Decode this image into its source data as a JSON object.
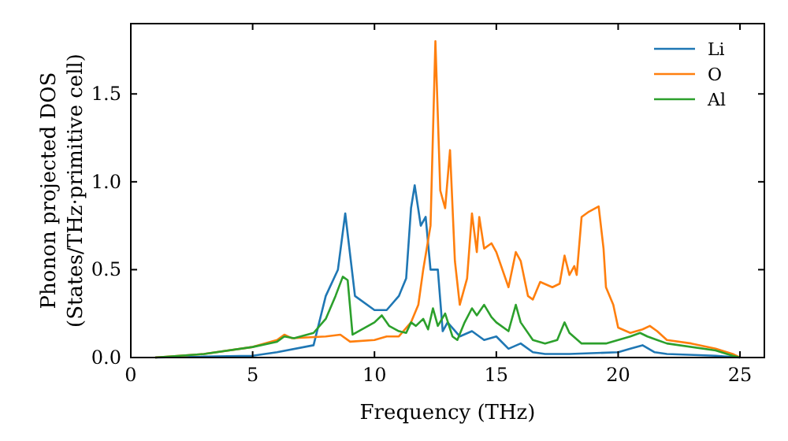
{
  "chart_data": {
    "type": "line",
    "xlabel": "Frequency (THz)",
    "ylabel": "Phonon projected DOS\n(States/THz·primitive cell)",
    "xlim": [
      0,
      26
    ],
    "ylim": [
      0,
      1.9
    ],
    "xticks": [
      0,
      5,
      10,
      15,
      20,
      25
    ],
    "yticks": [
      {
        "value": 0,
        "label": "0.0"
      },
      {
        "value": 0.5,
        "label": "0.5"
      },
      {
        "value": 1,
        "label": "1.0"
      },
      {
        "value": 1.5,
        "label": "1.5"
      }
    ],
    "legend": "top right",
    "grid": false,
    "marker": "none",
    "line_style": "solid",
    "series": [
      {
        "name": "Li",
        "color": "#1f77b4",
        "x": [
          1,
          3,
          5,
          6,
          7.5,
          8,
          8.5,
          8.8,
          9.2,
          10,
          10.5,
          11,
          11.3,
          11.5,
          11.65,
          11.9,
          12.1,
          12.3,
          12.6,
          12.8,
          13,
          13.5,
          14,
          14.5,
          15,
          15.5,
          16,
          16.5,
          17,
          18,
          20,
          20.5,
          21,
          21.5,
          22,
          24,
          25
        ],
        "values": [
          0,
          0.005,
          0.01,
          0.03,
          0.07,
          0.35,
          0.5,
          0.82,
          0.35,
          0.27,
          0.27,
          0.35,
          0.45,
          0.85,
          0.98,
          0.75,
          0.8,
          0.5,
          0.5,
          0.15,
          0.2,
          0.12,
          0.15,
          0.1,
          0.12,
          0.05,
          0.08,
          0.03,
          0.02,
          0.02,
          0.03,
          0.05,
          0.07,
          0.03,
          0.02,
          0.01,
          0
        ]
      },
      {
        "name": "O",
        "color": "#ff7f0e",
        "x": [
          1,
          3,
          5,
          6,
          6.3,
          6.6,
          8,
          8.6,
          9,
          10,
          10.5,
          11,
          11.5,
          11.8,
          12,
          12.3,
          12.5,
          12.7,
          12.9,
          13.1,
          13.3,
          13.5,
          13.8,
          14,
          14.2,
          14.3,
          14.5,
          14.8,
          15,
          15.5,
          15.8,
          16,
          16.3,
          16.5,
          16.8,
          17.3,
          17.6,
          17.8,
          18,
          18.2,
          18.3,
          18.5,
          18.8,
          19.2,
          19.4,
          19.5,
          19.8,
          20,
          20.5,
          21,
          21.3,
          21.6,
          22,
          23,
          24,
          24.7,
          25
        ],
        "values": [
          0,
          0.02,
          0.06,
          0.1,
          0.13,
          0.11,
          0.12,
          0.13,
          0.09,
          0.1,
          0.12,
          0.12,
          0.2,
          0.3,
          0.5,
          0.75,
          1.8,
          0.95,
          0.85,
          1.18,
          0.55,
          0.3,
          0.45,
          0.82,
          0.6,
          0.8,
          0.62,
          0.65,
          0.6,
          0.4,
          0.6,
          0.55,
          0.35,
          0.33,
          0.43,
          0.4,
          0.42,
          0.58,
          0.47,
          0.52,
          0.47,
          0.8,
          0.83,
          0.86,
          0.62,
          0.4,
          0.3,
          0.17,
          0.14,
          0.16,
          0.18,
          0.15,
          0.1,
          0.08,
          0.05,
          0.02,
          0
        ]
      },
      {
        "name": "Al",
        "color": "#2ca02c",
        "x": [
          1,
          3,
          5,
          6,
          6.3,
          6.7,
          7.5,
          8,
          8.4,
          8.7,
          8.9,
          9.1,
          10,
          10.3,
          10.6,
          11,
          11.3,
          11.5,
          11.7,
          12,
          12.2,
          12.4,
          12.6,
          12.9,
          13.2,
          13.4,
          13.7,
          14,
          14.2,
          14.5,
          14.8,
          15,
          15.5,
          15.8,
          16,
          16.5,
          17,
          17.5,
          17.8,
          18,
          18.5,
          19.5,
          20,
          20.5,
          20.9,
          21.2,
          21.6,
          22,
          24,
          24.7,
          25
        ],
        "values": [
          0,
          0.02,
          0.06,
          0.09,
          0.12,
          0.11,
          0.14,
          0.22,
          0.35,
          0.46,
          0.44,
          0.13,
          0.2,
          0.24,
          0.18,
          0.15,
          0.14,
          0.2,
          0.18,
          0.22,
          0.16,
          0.28,
          0.18,
          0.25,
          0.12,
          0.1,
          0.2,
          0.28,
          0.24,
          0.3,
          0.23,
          0.2,
          0.15,
          0.3,
          0.2,
          0.1,
          0.08,
          0.1,
          0.2,
          0.14,
          0.08,
          0.08,
          0.1,
          0.12,
          0.14,
          0.12,
          0.1,
          0.08,
          0.04,
          0.01,
          0
        ]
      }
    ]
  }
}
